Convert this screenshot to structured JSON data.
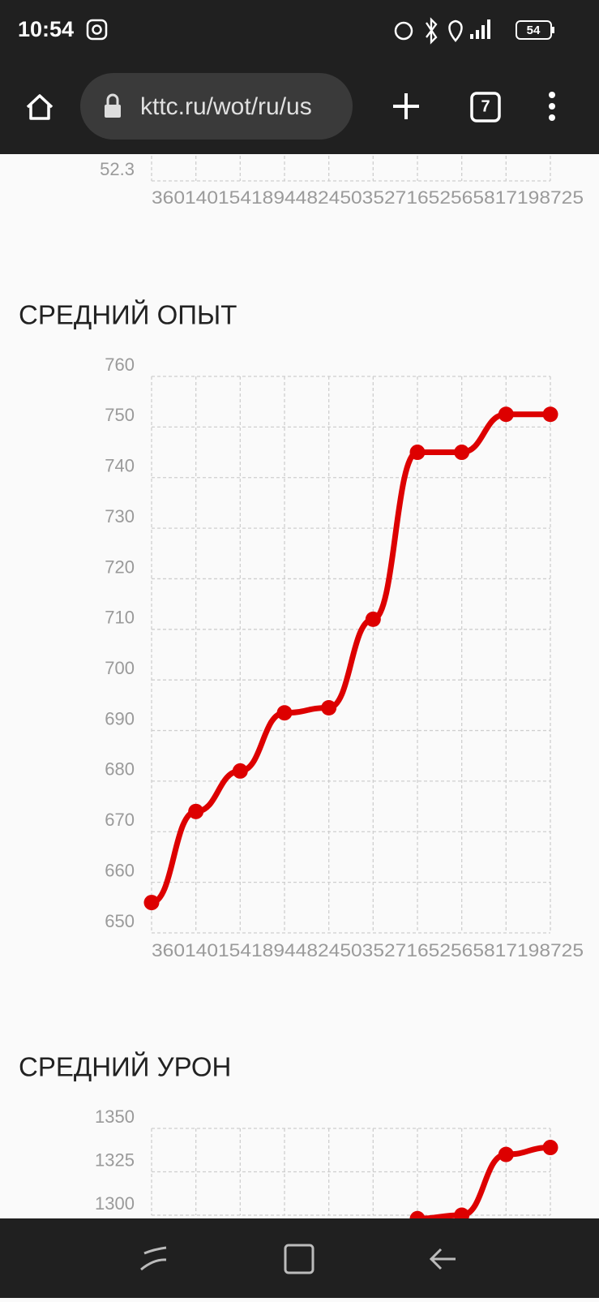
{
  "status_bar": {
    "time": "10:54",
    "battery": "54"
  },
  "browser": {
    "url": "kttc.ru/wot/ru/us",
    "tab_count": "7"
  },
  "charts": [
    {
      "type": "line",
      "yticks": [
        52.3
      ],
      "x_label_text": "360140154189448245035271652565817198725"
    },
    {
      "type": "line",
      "title": "СРЕДНИЙ ОПЫТ",
      "ylim": [
        650,
        760
      ],
      "yticks": [
        650,
        660,
        670,
        680,
        690,
        700,
        710,
        720,
        730,
        740,
        750,
        760
      ],
      "x_label_text": "360140154189448245035271652565817198725",
      "values": [
        656,
        674,
        682,
        693.5,
        694.5,
        712,
        745,
        745,
        752.5,
        752.5
      ],
      "color": "#dd0000"
    },
    {
      "type": "line",
      "title": "СРЕДНИЙ УРОН",
      "ylim": [
        1300,
        1350
      ],
      "yticks": [
        1300,
        1325,
        1350
      ],
      "values": [
        null,
        null,
        null,
        null,
        null,
        null,
        1298,
        1300,
        1335,
        1339
      ],
      "color": "#dd0000"
    }
  ]
}
